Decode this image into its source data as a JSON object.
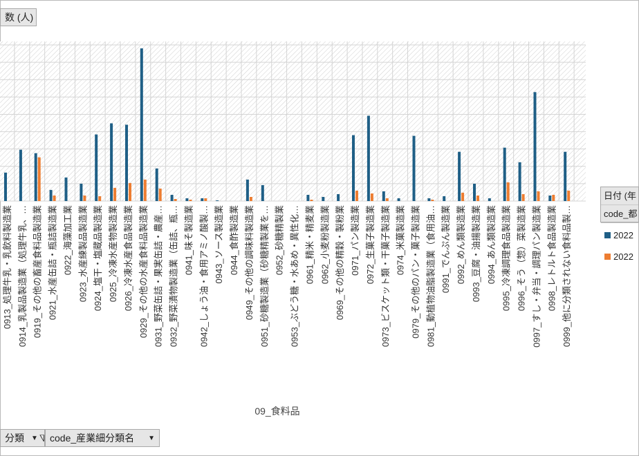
{
  "header_button": {
    "label": "数 (人)"
  },
  "legend": {
    "header1": "日付 (年",
    "header2": "code_都",
    "items": [
      {
        "label": "2022",
        "color": "#1f5f86"
      },
      {
        "label": "2022",
        "color": "#ed7d31"
      }
    ]
  },
  "bottom_bar": {
    "field1_label": "分類",
    "field2_label": "code_産業細分類名"
  },
  "chart_data": {
    "type": "bar",
    "xlabel": "09_食料品",
    "categories": [
      "0913_処理牛乳・乳飲料製造業",
      "0914_乳製品製造業（処理牛乳、…",
      "0919_その他の畜産食料品製造業",
      "0921_水産缶詰・瓶詰製造業",
      "0922_海藻加工業",
      "0923_水産練製品製造業",
      "0924_塩干・塩蔵品製造業",
      "0925_冷凍水産物製造業",
      "0926_冷凍水産食品製造業",
      "0929_その他の水産食料品製造業",
      "0931_野菜缶詰・果実缶詰・農産…",
      "0932_野菜漬物製造業（缶詰、瓶…",
      "0941_味そ製造業",
      "0942_しょう油・食用アミノ酸製…",
      "0943_ソース製造業",
      "0944_食酢製造業",
      "0949_その他の調味料製造業",
      "0951_砂糖製造業（砂糖精製業を…",
      "0952_砂糖精製業",
      "0953_ぶどう糖・水あめ・異性化…",
      "0961_精米・精麦業",
      "0962_小麦粉製造業",
      "0969_その他の精穀・製粉業",
      "0971_パン製造業",
      "0972_生菓子製造業",
      "0973_ビスケット類・干菓子製造業",
      "0974_米菓製造業",
      "0979_その他のパン・菓子製造業",
      "0981_動植物油脂製造業（食用油…",
      "0991_でんぷん製造業",
      "0992_めん類製造業",
      "0993_豆腐・油揚製造業",
      "0994_あん類製造業",
      "0995_冷凍調理食品製造業",
      "0996_そう（惣）菜製造業",
      "0997_すし・弁当・調理パン製造業",
      "0998_レトルト食品製造業",
      "0999_他に分類されない食料品製…"
    ],
    "series": [
      {
        "name": "2022",
        "color": "#1f5f86",
        "values": [
          41,
          74,
          69,
          16,
          34,
          25,
          96,
          112,
          110,
          220,
          47,
          9,
          4,
          4,
          1,
          0,
          31,
          23,
          0,
          0,
          9,
          6,
          10,
          95,
          123,
          14,
          4,
          94,
          4,
          7,
          71,
          25,
          4,
          77,
          56,
          157,
          8,
          71
        ]
      },
      {
        "name": "2022",
        "color": "#ed7d31",
        "values": [
          0,
          0,
          63,
          8,
          0,
          8,
          7,
          19,
          26,
          31,
          18,
          3,
          2,
          4,
          0,
          0,
          6,
          0,
          0,
          0,
          2,
          0,
          0,
          15,
          11,
          4,
          0,
          0,
          2,
          0,
          12,
          8,
          0,
          27,
          10,
          14,
          9,
          15
        ]
      }
    ]
  }
}
